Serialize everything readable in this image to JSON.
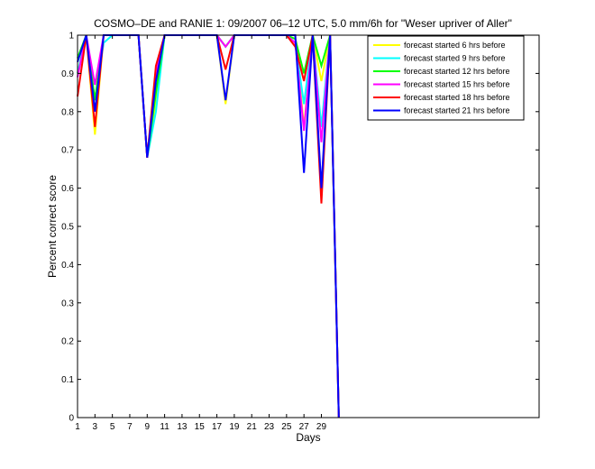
{
  "chart_data": {
    "type": "line",
    "title": "COSMO–DE and RANIE 1: 09/2007 06–12 UTC, 5.0 mm/6h for \"Weser upriver of Aller\"",
    "xlabel": "Days",
    "ylabel": "Percent correct score",
    "xlim": [
      1,
      54
    ],
    "ylim": [
      0,
      1
    ],
    "xticks": [
      1,
      3,
      5,
      7,
      9,
      11,
      13,
      15,
      17,
      19,
      21,
      23,
      25,
      27,
      29
    ],
    "yticks": [
      0,
      0.1,
      0.2,
      0.3,
      0.4,
      0.5,
      0.6,
      0.7,
      0.8,
      0.9,
      1
    ],
    "ytick_labels": [
      "0",
      "0.1",
      "0.2",
      "0.3",
      "0.4",
      "0.5",
      "0.6",
      "0.7",
      "0.8",
      "0.9",
      "1"
    ],
    "grid": false,
    "legend_position": "top-right",
    "x": [
      1,
      2,
      3,
      4,
      5,
      6,
      7,
      8,
      9,
      10,
      11,
      12,
      13,
      14,
      15,
      16,
      17,
      18,
      19,
      20,
      21,
      22,
      23,
      24,
      25,
      26,
      27,
      28,
      29,
      30,
      31
    ],
    "series": [
      {
        "name": "forecast started 6 hrs before",
        "color": "#ffff00",
        "values": [
          0.9,
          1,
          0.74,
          1,
          1,
          1,
          1,
          1,
          0.68,
          0.82,
          1,
          1,
          1,
          1,
          1,
          1,
          1,
          0.82,
          1,
          1,
          1,
          1,
          1,
          1,
          1,
          1,
          0.76,
          1,
          0.88,
          1,
          0
        ]
      },
      {
        "name": "forecast started 9 hrs before",
        "color": "#00ffff",
        "values": [
          0.9,
          1,
          0.83,
          0.98,
          1,
          1,
          1,
          1,
          0.68,
          0.8,
          1,
          1,
          1,
          1,
          1,
          1,
          1,
          0.97,
          1,
          1,
          1,
          1,
          1,
          1,
          1,
          0.98,
          0.82,
          1,
          0.76,
          1,
          0
        ]
      },
      {
        "name": "forecast started 12 hrs before",
        "color": "#00ff00",
        "values": [
          0.94,
          1,
          0.83,
          1,
          1,
          1,
          1,
          1,
          0.68,
          0.85,
          1,
          1,
          1,
          1,
          1,
          1,
          1,
          0.97,
          1,
          1,
          1,
          1,
          1,
          1,
          1,
          0.99,
          0.9,
          1,
          0.92,
          1,
          0
        ]
      },
      {
        "name": "forecast started 15 hrs before",
        "color": "#ff00ff",
        "values": [
          0.89,
          1,
          0.87,
          1,
          1,
          1,
          1,
          1,
          0.68,
          0.9,
          1,
          1,
          1,
          1,
          1,
          1,
          1,
          0.97,
          1,
          1,
          1,
          1,
          1,
          1,
          1,
          0.98,
          0.75,
          1,
          0.72,
          1,
          0
        ]
      },
      {
        "name": "forecast started 18 hrs before",
        "color": "#ff0000",
        "values": [
          0.84,
          1,
          0.76,
          1,
          1,
          1,
          1,
          1,
          0.68,
          0.92,
          1,
          1,
          1,
          1,
          1,
          1,
          1,
          0.91,
          1,
          1,
          1,
          1,
          1,
          1,
          1,
          0.97,
          0.88,
          1,
          0.56,
          1,
          0
        ]
      },
      {
        "name": "forecast started 21 hrs before",
        "color": "#0000ff",
        "values": [
          0.93,
          1,
          0.8,
          1,
          1,
          1,
          1,
          1,
          0.68,
          0.88,
          1,
          1,
          1,
          1,
          1,
          1,
          1,
          0.83,
          1,
          1,
          1,
          1,
          1,
          1,
          1,
          1,
          0.64,
          1,
          0.6,
          1,
          0
        ]
      }
    ]
  }
}
